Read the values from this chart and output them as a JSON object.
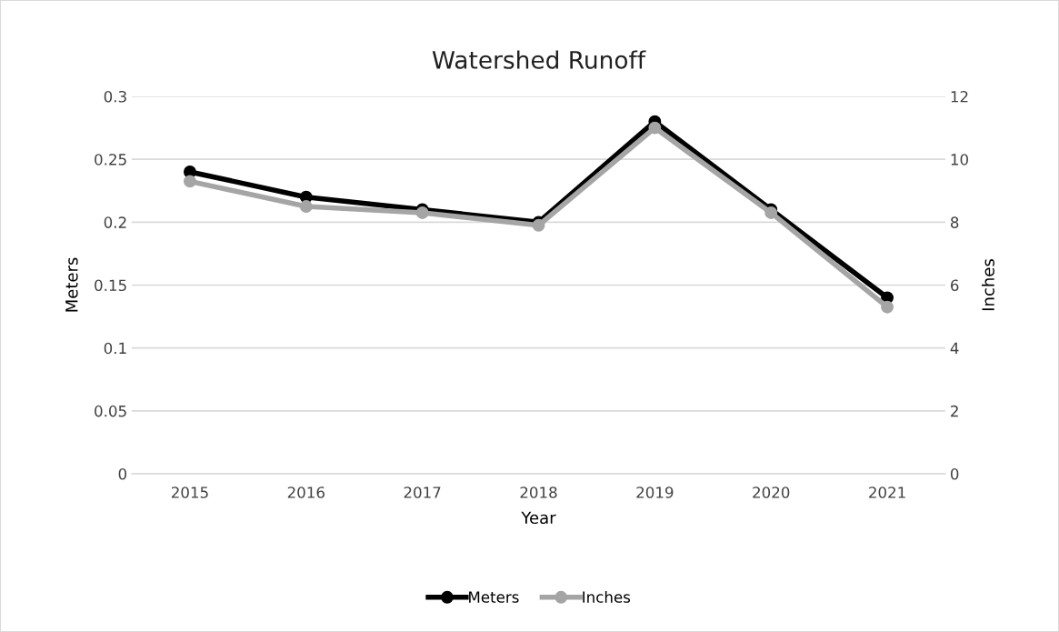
{
  "chart_data": {
    "type": "line",
    "title": "Watershed Runoff",
    "xlabel": "Year",
    "ylabel": "Meters",
    "y2label": "Inches",
    "categories": [
      "2015",
      "2016",
      "2017",
      "2018",
      "2019",
      "2020",
      "2021"
    ],
    "series": [
      {
        "name": "Meters",
        "color": "#000000",
        "values": [
          0.24,
          0.22,
          0.21,
          0.2,
          0.28,
          0.21,
          0.14
        ]
      },
      {
        "name": "Inches",
        "color": "#a5a5a5",
        "axis": "y2",
        "values": [
          9.3,
          8.5,
          8.3,
          7.9,
          11.0,
          8.3,
          5.3
        ]
      }
    ],
    "ylim": [
      0,
      0.3
    ],
    "yticks": [
      0,
      0.05,
      0.1,
      0.15,
      0.2,
      0.25,
      0.3
    ],
    "y2lim": [
      0,
      12
    ],
    "y2ticks": [
      0,
      2,
      4,
      6,
      8,
      10,
      12
    ],
    "grid": "y",
    "legend": "bottom",
    "marker": "circle",
    "line_style": "solid"
  }
}
